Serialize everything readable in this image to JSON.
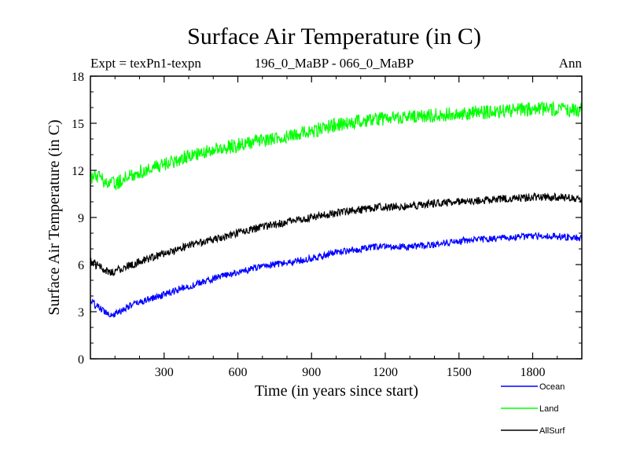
{
  "chart_data": {
    "type": "line",
    "title": "Surface Air Temperature (in C)",
    "subtitle_left": "Expt = texPn1-texpn",
    "subtitle_center": "196_0_MaBP - 066_0_MaBP",
    "subtitle_right": "Ann",
    "xlabel": "Time (in years since start)",
    "ylabel": "Surface Air Temperature (in C)",
    "xlim": [
      0,
      2000
    ],
    "ylim": [
      0,
      18
    ],
    "xticks": [
      300,
      600,
      900,
      1200,
      1500,
      1800
    ],
    "yticks": [
      0,
      3,
      6,
      9,
      12,
      15,
      18
    ],
    "grid": false,
    "legend_placement": "bottom-right",
    "series": [
      {
        "name": "Ocean",
        "color": "#0000ff",
        "x": [
          0,
          30,
          60,
          90,
          120,
          150,
          200,
          300,
          400,
          500,
          600,
          700,
          800,
          900,
          1000,
          1100,
          1200,
          1300,
          1400,
          1500,
          1600,
          1700,
          1800,
          1900,
          2000
        ],
        "y": [
          3.7,
          3.3,
          3.0,
          2.8,
          3.0,
          3.3,
          3.6,
          4.1,
          4.6,
          5.1,
          5.5,
          5.9,
          6.1,
          6.4,
          6.8,
          7.0,
          7.2,
          7.1,
          7.3,
          7.5,
          7.6,
          7.7,
          7.8,
          7.8,
          7.7
        ]
      },
      {
        "name": "Land",
        "color": "#00ff00",
        "x": [
          0,
          30,
          60,
          90,
          120,
          150,
          200,
          300,
          400,
          500,
          600,
          700,
          800,
          900,
          1000,
          1100,
          1200,
          1300,
          1400,
          1500,
          1600,
          1700,
          1800,
          1900,
          2000
        ],
        "y": [
          11.5,
          11.6,
          11.3,
          11.1,
          11.3,
          11.6,
          11.9,
          12.4,
          12.9,
          13.3,
          13.6,
          13.9,
          14.2,
          14.5,
          14.9,
          15.1,
          15.3,
          15.4,
          15.5,
          15.6,
          15.7,
          15.8,
          15.9,
          15.9,
          15.8
        ]
      },
      {
        "name": "AllSurf",
        "color": "#000000",
        "x": [
          0,
          30,
          60,
          90,
          120,
          150,
          200,
          300,
          400,
          500,
          600,
          700,
          800,
          900,
          1000,
          1100,
          1200,
          1300,
          1400,
          1500,
          1600,
          1700,
          1800,
          1900,
          2000
        ],
        "y": [
          6.2,
          5.9,
          5.6,
          5.5,
          5.7,
          5.9,
          6.2,
          6.7,
          7.2,
          7.6,
          8.0,
          8.4,
          8.7,
          9.0,
          9.3,
          9.5,
          9.7,
          9.7,
          9.9,
          10.0,
          10.1,
          10.2,
          10.3,
          10.3,
          10.2
        ]
      }
    ]
  }
}
